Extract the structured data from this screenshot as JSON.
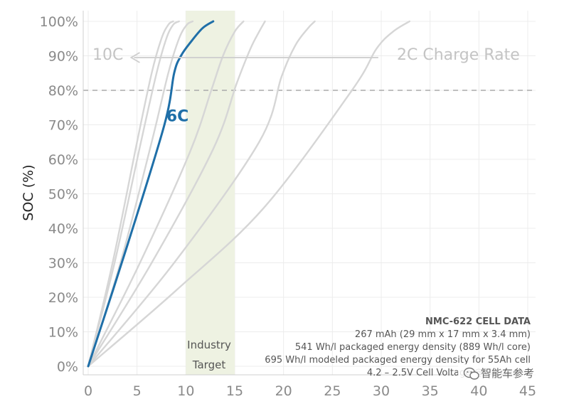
{
  "chart_data": {
    "type": "line",
    "xlim": [
      0,
      45
    ],
    "ylim": [
      0,
      100
    ],
    "x_ticks": [
      0,
      5,
      10,
      15,
      20,
      25,
      30,
      35,
      40,
      45
    ],
    "x_tick_labels": [
      "0",
      "5",
      "10",
      "15",
      "20",
      "25",
      "30",
      "35",
      "40",
      "45"
    ],
    "y_ticks": [
      0,
      10,
      20,
      30,
      40,
      50,
      60,
      70,
      80,
      90,
      100
    ],
    "y_tick_labels": [
      "0%",
      "10%",
      "20%",
      "30%",
      "40%",
      "50%",
      "60%",
      "70%",
      "80%",
      "90%",
      "100%"
    ],
    "xlabel": "",
    "ylabel": "SOC (%)",
    "grid": true,
    "reference_line": {
      "y": 80,
      "style": "dashed",
      "color": "#aaaaaa"
    },
    "band": {
      "x_range": [
        10,
        15
      ],
      "label_lines": [
        "Industry",
        "Target"
      ],
      "color": "#eef2e2"
    },
    "series": [
      {
        "name": "10C",
        "highlighted": false,
        "color": "#d6d6d6",
        "x": [
          0,
          2.5,
          5,
          6.5,
          7.5,
          8.2,
          8.7
        ],
        "y": [
          0,
          30,
          65,
          85,
          95,
          99,
          100
        ]
      },
      {
        "name": "",
        "highlighted": false,
        "color": "#d6d6d6",
        "x": [
          0,
          2.7,
          5.4,
          7,
          8,
          8.7,
          9.3
        ],
        "y": [
          0,
          30,
          65,
          85,
          95,
          99,
          100
        ]
      },
      {
        "name": "",
        "highlighted": false,
        "color": "#d6d6d6",
        "x": [
          0,
          3.3,
          6.5,
          8.2,
          9.3,
          10.1,
          10.7
        ],
        "y": [
          0,
          30,
          65,
          85,
          95,
          99,
          100
        ]
      },
      {
        "name": "6C",
        "highlighted": true,
        "color": "#1f6fa8",
        "x": [
          0,
          4,
          7.8,
          8.8,
          9.5,
          10.5,
          11.7,
          12.8
        ],
        "y": [
          0,
          35,
          70,
          85,
          90,
          94,
          98,
          100
        ]
      },
      {
        "name": "",
        "highlighted": false,
        "color": "#d6d6d6",
        "x": [
          0,
          5.3,
          10.4,
          12.6,
          13.8,
          15,
          15.9
        ],
        "y": [
          0,
          30,
          62,
          80,
          90,
          97,
          100
        ]
      },
      {
        "name": "",
        "highlighted": false,
        "color": "#d6d6d6",
        "x": [
          0,
          6.5,
          12.8,
          15.2,
          16.6,
          17.5,
          18.1
        ],
        "y": [
          0,
          30,
          63,
          82,
          92,
          97,
          100
        ]
      },
      {
        "name": "",
        "highlighted": false,
        "color": "#d6d6d6",
        "x": [
          0,
          8.8,
          17.5,
          19.8,
          21.2,
          22.5,
          23.2
        ],
        "y": [
          0,
          30,
          65,
          84,
          93,
          98,
          100
        ]
      },
      {
        "name": "2C",
        "highlighted": false,
        "color": "#d6d6d6",
        "x": [
          0,
          9,
          18,
          27,
          29.5,
          31.2,
          32.9
        ],
        "y": [
          0,
          22,
          46,
          80,
          92,
          97,
          100
        ]
      }
    ],
    "annotations": {
      "left_label": "10C",
      "right_label": "2C Charge Rate",
      "arrow_y": 89.5,
      "arrow_from_x": 29.7,
      "arrow_to_x": 4.4,
      "highlight_label": "6C",
      "highlight_label_at": [
        8,
        71
      ]
    },
    "cell_data": {
      "title": "NMC-622 CELL DATA",
      "lines": [
        "267 mAh (29 mm x 17 mm x 3.4 mm)",
        "541 Wh/l packaged energy density (889 Wh/l core)",
        "695 Wh/l modeled packaged energy density for 55Ah cell",
        "4.2 – 2.5V Cell Voltage @ 30 deg. C"
      ]
    }
  },
  "watermark": {
    "text": "智能车参考",
    "icon": "wechat-icon"
  }
}
